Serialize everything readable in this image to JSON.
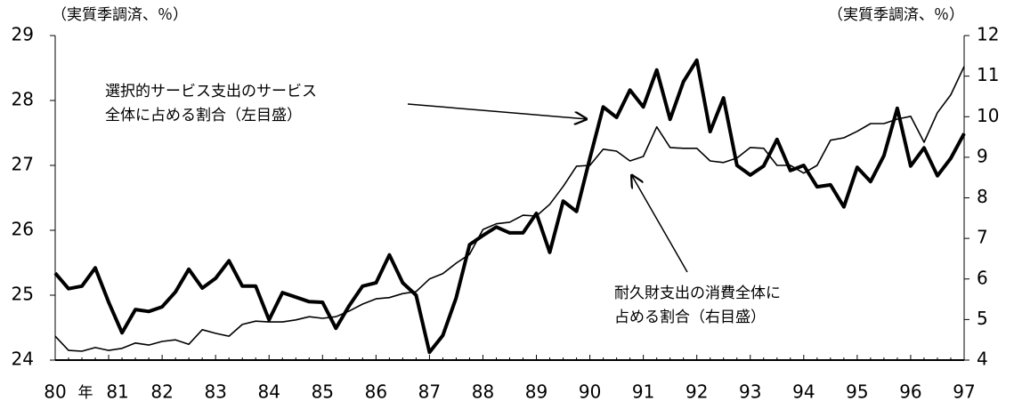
{
  "chart_data": {
    "type": "line",
    "y_unit_left": "（実質季調済、％）",
    "y_unit_right": "（実質季調済、％）",
    "x_unit": "年",
    "categories": [
      "80",
      null,
      null,
      null,
      "81",
      null,
      null,
      null,
      "82",
      null,
      null,
      null,
      "83",
      null,
      null,
      null,
      "84",
      null,
      null,
      null,
      "85",
      null,
      null,
      null,
      "86",
      null,
      null,
      null,
      "87",
      null,
      null,
      null,
      "88",
      null,
      null,
      null,
      "89",
      null,
      null,
      null,
      "90",
      null,
      null,
      null,
      "91",
      null,
      null,
      null,
      "92",
      null,
      null,
      null,
      "93",
      null,
      null,
      null,
      "94",
      null,
      null,
      null,
      "95",
      null,
      null,
      null,
      "96",
      null,
      null,
      null,
      "97"
    ],
    "ylim": [
      24,
      29
    ],
    "yticks": [
      24,
      25,
      26,
      27,
      28,
      29
    ],
    "y2lim": [
      4,
      12
    ],
    "y2ticks": [
      4,
      5,
      6,
      7,
      8,
      9,
      10,
      11,
      12
    ],
    "series": [
      {
        "label_lines": [
          "選択的サービス支出のサービス",
          "全体に占める割合（左目盛）"
        ],
        "color": "#000000",
        "width": 4,
        "axis": "y",
        "values": [
          25.34,
          25.1,
          25.14,
          25.42,
          24.89,
          24.42,
          24.78,
          24.75,
          24.82,
          25.05,
          25.4,
          25.11,
          25.26,
          25.53,
          25.14,
          25.14,
          24.62,
          25.04,
          24.97,
          24.9,
          24.89,
          24.49,
          24.84,
          25.14,
          25.19,
          25.62,
          25.19,
          25.0,
          24.12,
          24.38,
          24.96,
          25.78,
          25.92,
          26.05,
          25.96,
          25.96,
          26.26,
          25.66,
          26.45,
          26.29,
          27.11,
          27.9,
          27.74,
          28.16,
          27.9,
          28.47,
          27.71,
          28.29,
          28.62,
          27.52,
          28.04,
          27.0,
          26.85,
          26.99,
          27.4,
          26.92,
          27.0,
          26.67,
          26.7,
          26.36,
          26.97,
          26.75,
          27.15,
          27.88,
          26.99,
          27.27,
          26.84,
          27.11,
          27.49
        ]
      },
      {
        "label_lines": [
          "耐久財支出の消費全体に",
          "占める割合（右目盛）"
        ],
        "color": "#000000",
        "width": 1.6,
        "axis": "y2",
        "values": [
          4.59,
          4.24,
          4.22,
          4.31,
          4.24,
          4.29,
          4.42,
          4.37,
          4.46,
          4.5,
          4.39,
          4.75,
          4.66,
          4.59,
          4.88,
          4.96,
          4.94,
          4.94,
          4.99,
          5.07,
          5.03,
          5.07,
          5.21,
          5.38,
          5.51,
          5.54,
          5.64,
          5.69,
          6.0,
          6.13,
          6.39,
          6.61,
          7.22,
          7.36,
          7.4,
          7.57,
          7.55,
          7.84,
          8.28,
          8.78,
          8.8,
          9.2,
          9.15,
          8.91,
          9.02,
          9.75,
          9.24,
          9.22,
          9.22,
          8.91,
          8.87,
          8.98,
          9.24,
          9.22,
          8.8,
          8.8,
          8.61,
          8.8,
          9.42,
          9.48,
          9.64,
          9.83,
          9.83,
          9.94,
          10.01,
          9.37,
          10.1,
          10.54,
          11.24
        ]
      }
    ]
  }
}
